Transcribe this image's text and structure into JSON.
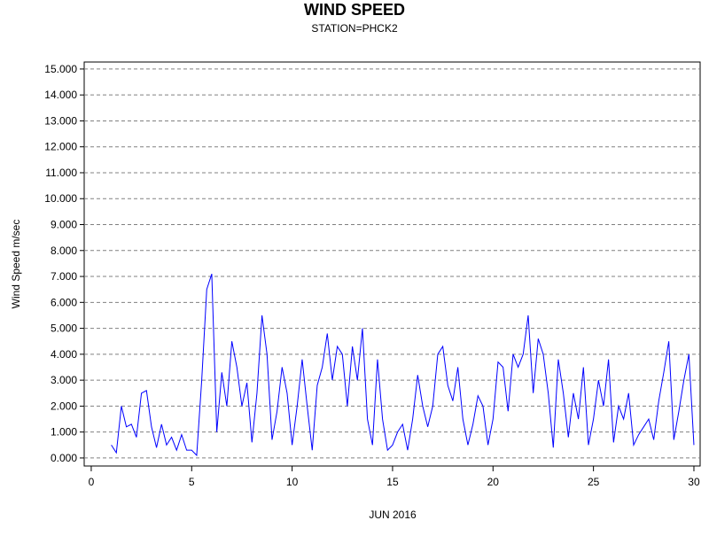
{
  "chart_data": {
    "type": "line",
    "title": "WIND SPEED",
    "subtitle": "STATION=PHCK2",
    "y_label": "Wind Speed m/sec",
    "x_label": "JUN 2016",
    "xlim": [
      -0.35,
      30.31
    ],
    "ylim": [
      -0.31,
      15.27
    ],
    "xticks": [
      0,
      5,
      10,
      15,
      20,
      25,
      30
    ],
    "yticks": [
      {
        "value": 0,
        "label": "0.000"
      },
      {
        "value": 1,
        "label": "1.000"
      },
      {
        "value": 2,
        "label": "2.000"
      },
      {
        "value": 3,
        "label": "3.000"
      },
      {
        "value": 4,
        "label": "4.000"
      },
      {
        "value": 5,
        "label": "5.000"
      },
      {
        "value": 6,
        "label": "6.000"
      },
      {
        "value": 7,
        "label": "7.000"
      },
      {
        "value": 8,
        "label": "8.000"
      },
      {
        "value": 9,
        "label": "9.000"
      },
      {
        "value": 10,
        "label": "10.000"
      },
      {
        "value": 11,
        "label": "11.000"
      },
      {
        "value": 12,
        "label": "12.000"
      },
      {
        "value": 13,
        "label": "13.000"
      },
      {
        "value": 14,
        "label": "14.000"
      },
      {
        "value": 15,
        "label": "15.000"
      }
    ],
    "grid": true,
    "color": "#0000ff",
    "x": [
      1.0,
      1.25,
      1.5,
      1.75,
      2.0,
      2.25,
      2.5,
      2.75,
      3.0,
      3.25,
      3.5,
      3.75,
      4.0,
      4.25,
      4.5,
      4.75,
      5.0,
      5.25,
      5.5,
      5.75,
      6.0,
      6.25,
      6.5,
      6.75,
      7.0,
      7.25,
      7.5,
      7.75,
      8.0,
      8.25,
      8.5,
      8.75,
      9.0,
      9.25,
      9.5,
      9.75,
      10.0,
      10.25,
      10.5,
      10.75,
      11.0,
      11.25,
      11.5,
      11.75,
      12.0,
      12.25,
      12.5,
      12.75,
      13.0,
      13.25,
      13.5,
      13.75,
      14.0,
      14.25,
      14.5,
      14.75,
      15.0,
      15.25,
      15.5,
      15.75,
      16.0,
      16.25,
      16.5,
      16.75,
      17.0,
      17.25,
      17.5,
      17.75,
      18.0,
      18.25,
      18.5,
      18.75,
      19.0,
      19.25,
      19.5,
      19.75,
      20.0,
      20.25,
      20.5,
      20.75,
      21.0,
      21.25,
      21.5,
      21.75,
      22.0,
      22.25,
      22.5,
      22.75,
      23.0,
      23.25,
      23.5,
      23.75,
      24.0,
      24.25,
      24.5,
      24.75,
      25.0,
      25.25,
      25.5,
      25.75,
      26.0,
      26.25,
      26.5,
      26.75,
      27.0,
      27.25,
      27.5,
      27.75,
      28.0,
      28.25,
      28.5,
      28.75,
      29.0,
      29.25,
      29.5,
      29.75,
      30.0
    ],
    "values": [
      0.5,
      0.2,
      2.0,
      1.2,
      1.3,
      0.8,
      2.5,
      2.6,
      1.2,
      0.4,
      1.3,
      0.5,
      0.8,
      0.3,
      0.9,
      0.3,
      0.3,
      0.1,
      3.0,
      6.5,
      7.1,
      1.0,
      3.3,
      2.0,
      4.5,
      3.5,
      2.0,
      2.9,
      0.6,
      2.5,
      5.5,
      4.0,
      0.7,
      1.8,
      3.5,
      2.5,
      0.5,
      2.0,
      3.8,
      2.0,
      0.3,
      2.8,
      3.5,
      4.8,
      3.0,
      4.3,
      4.0,
      2.0,
      4.3,
      3.0,
      5.0,
      1.5,
      0.5,
      3.8,
      1.5,
      0.3,
      0.5,
      1.0,
      1.3,
      0.3,
      1.5,
      3.2,
      2.0,
      1.2,
      2.0,
      4.0,
      4.3,
      2.8,
      2.2,
      3.5,
      1.5,
      0.5,
      1.3,
      2.4,
      2.0,
      0.5,
      1.5,
      3.7,
      3.5,
      1.8,
      4.0,
      3.5,
      4.0,
      5.5,
      2.5,
      4.6,
      4.0,
      2.5,
      0.4,
      3.8,
      2.5,
      0.8,
      2.5,
      1.5,
      3.5,
      0.5,
      1.5,
      3.0,
      2.0,
      3.8,
      0.6,
      2.0,
      1.5,
      2.5,
      0.5,
      0.9,
      1.2,
      1.5,
      0.7,
      2.2,
      3.3,
      4.5,
      0.7,
      1.8,
      3.0,
      4.0,
      0.5
    ]
  }
}
